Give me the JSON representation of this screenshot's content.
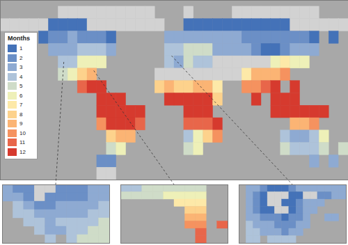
{
  "chart_data": {
    "type": "map",
    "tick_labels": false,
    "xlim": [
      -180,
      180
    ],
    "ylim": [
      -60,
      85
    ],
    "lons": [
      -175,
      -165,
      -155,
      -145,
      -135,
      -125,
      -115,
      -105,
      -95,
      -85,
      -75,
      -65,
      -55,
      -45,
      -35,
      -25,
      -15,
      -5,
      5,
      15,
      25,
      35,
      45,
      55,
      65,
      75,
      85,
      95,
      105,
      115,
      125,
      135,
      145,
      155,
      165,
      175
    ],
    "lats": [
      75,
      65,
      55,
      45,
      35,
      25,
      15,
      5,
      -5,
      -15,
      -25,
      -35,
      -45,
      -55
    ],
    "cells": [
      [
        null,
        null,
        null,
        null,
        null,
        null,
        0,
        0,
        0,
        0,
        0,
        0,
        0,
        0,
        0,
        0,
        null,
        null,
        null,
        0,
        null,
        null,
        null,
        null,
        0,
        0,
        0,
        0,
        0,
        0,
        0,
        0,
        0,
        null,
        null,
        null
      ],
      [
        0,
        0,
        0,
        0,
        0,
        1,
        1,
        1,
        1,
        0,
        0,
        0,
        0,
        0,
        0,
        0,
        0,
        null,
        null,
        1,
        1,
        1,
        1,
        1,
        1,
        1,
        1,
        1,
        1,
        1,
        0,
        0,
        0,
        0,
        0,
        0
      ],
      [
        null,
        null,
        null,
        null,
        1,
        2,
        2,
        3,
        2,
        2,
        2,
        1,
        null,
        null,
        null,
        null,
        null,
        3,
        3,
        3,
        3,
        3,
        3,
        3,
        3,
        2,
        2,
        2,
        2,
        2,
        2,
        2,
        1,
        null,
        1,
        null
      ],
      [
        null,
        null,
        null,
        null,
        null,
        3,
        3,
        3,
        4,
        4,
        4,
        3,
        null,
        null,
        null,
        null,
        null,
        4,
        4,
        5,
        5,
        5,
        3,
        3,
        3,
        3,
        2,
        1,
        1,
        2,
        3,
        3,
        3,
        null,
        null,
        null
      ],
      [
        null,
        null,
        null,
        null,
        null,
        null,
        4,
        4,
        6,
        6,
        6,
        null,
        null,
        null,
        null,
        null,
        null,
        4,
        3,
        5,
        4,
        4,
        0,
        0,
        0,
        0,
        0,
        0,
        6,
        7,
        6,
        6,
        null,
        null,
        null,
        null
      ],
      [
        null,
        null,
        null,
        null,
        null,
        null,
        5,
        6,
        8,
        9,
        null,
        null,
        null,
        null,
        null,
        null,
        0,
        0,
        0,
        0,
        0,
        0,
        0,
        0,
        0,
        7,
        9,
        9,
        9,
        10,
        null,
        null,
        null,
        null,
        null,
        null
      ],
      [
        null,
        null,
        null,
        null,
        null,
        null,
        null,
        null,
        11,
        12,
        12,
        null,
        null,
        null,
        null,
        null,
        8,
        9,
        8,
        8,
        9,
        9,
        7,
        null,
        null,
        10,
        10,
        11,
        12,
        null,
        12,
        null,
        null,
        null,
        null,
        null
      ],
      [
        null,
        null,
        null,
        null,
        null,
        null,
        null,
        null,
        null,
        null,
        12,
        12,
        12,
        null,
        null,
        null,
        null,
        12,
        12,
        12,
        12,
        12,
        8,
        null,
        null,
        null,
        12,
        null,
        12,
        12,
        12,
        null,
        null,
        null,
        null,
        null
      ],
      [
        null,
        null,
        null,
        null,
        null,
        null,
        null,
        null,
        null,
        null,
        12,
        12,
        12,
        12,
        12,
        null,
        null,
        null,
        null,
        12,
        12,
        12,
        null,
        null,
        null,
        null,
        null,
        null,
        12,
        12,
        12,
        12,
        12,
        12,
        null,
        null
      ],
      [
        null,
        null,
        null,
        null,
        null,
        null,
        null,
        null,
        null,
        null,
        10,
        12,
        12,
        12,
        11,
        null,
        null,
        null,
        null,
        11,
        11,
        11,
        12,
        null,
        null,
        null,
        null,
        null,
        null,
        null,
        9,
        9,
        10,
        null,
        null,
        null
      ],
      [
        null,
        null,
        null,
        null,
        null,
        null,
        null,
        null,
        null,
        null,
        null,
        8,
        9,
        9,
        null,
        null,
        null,
        null,
        null,
        4,
        6,
        8,
        10,
        null,
        null,
        null,
        null,
        null,
        null,
        4,
        3,
        3,
        4,
        6,
        null,
        null
      ],
      [
        null,
        null,
        null,
        null,
        null,
        null,
        null,
        null,
        null,
        null,
        null,
        5,
        6,
        null,
        null,
        null,
        null,
        null,
        null,
        5,
        6,
        null,
        null,
        null,
        null,
        null,
        null,
        null,
        null,
        5,
        4,
        4,
        4,
        5,
        null,
        5
      ],
      [
        null,
        null,
        null,
        null,
        null,
        null,
        null,
        null,
        null,
        null,
        2,
        2,
        null,
        null,
        null,
        null,
        null,
        null,
        null,
        null,
        null,
        null,
        null,
        null,
        null,
        null,
        null,
        null,
        null,
        null,
        null,
        null,
        3,
        null,
        3,
        null
      ],
      [
        null,
        null,
        null,
        null,
        null,
        null,
        null,
        null,
        null,
        null,
        0,
        0,
        null,
        null,
        null,
        null,
        null,
        null,
        null,
        null,
        null,
        null,
        null,
        null,
        null,
        null,
        null,
        null,
        null,
        null,
        null,
        null,
        null,
        null,
        null,
        null
      ]
    ],
    "colorbar": {
      "title": "Months",
      "ticks": [
        1,
        2,
        3,
        4,
        5,
        6,
        7,
        8,
        9,
        10,
        11,
        12
      ],
      "colors": [
        "#4472b8",
        "#6b8fc6",
        "#8eaad2",
        "#aec3da",
        "#cfdcc8",
        "#eef0b8",
        "#fde9a8",
        "#fdd28c",
        "#fbb474",
        "#f5925f",
        "#e8664a",
        "#d63a2e"
      ]
    },
    "insets": [
      {
        "xlim": [
          -124,
          -104
        ],
        "ylim": [
          28,
          42
        ],
        "lons": [
          -123,
          -121,
          -119,
          -117,
          -115,
          -113,
          -111,
          -109,
          -107,
          -105
        ],
        "lats": [
          41,
          39,
          37,
          35,
          33,
          31,
          29
        ],
        "cells": [
          [
            3,
            2,
            2,
            0,
            0,
            2,
            2,
            2,
            3,
            3
          ],
          [
            3,
            3,
            2,
            0,
            2,
            2,
            2,
            2,
            3,
            3
          ],
          [
            null,
            4,
            3,
            2,
            2,
            3,
            3,
            3,
            3,
            4
          ],
          [
            null,
            4,
            4,
            3,
            3,
            3,
            3,
            3,
            4,
            4
          ],
          [
            null,
            null,
            4,
            4,
            3,
            4,
            4,
            4,
            4,
            5
          ],
          [
            null,
            null,
            null,
            4,
            3,
            3,
            4,
            4,
            5,
            5
          ],
          [
            null,
            null,
            null,
            null,
            4,
            null,
            4,
            5,
            5,
            5
          ]
        ]
      },
      {
        "xlim": [
          -88,
          -78
        ],
        "ylim": [
          24,
          32
        ],
        "lons": [
          -87.5,
          -86.5,
          -85.5,
          -84.5,
          -83.5,
          -82.5,
          -81.5,
          -80.5,
          -79.5,
          -78.5
        ],
        "lats": [
          31.5,
          30.5,
          29.5,
          28.5,
          27.5,
          26.5,
          25.5,
          24.5
        ],
        "cells": [
          [
            4,
            4,
            5,
            5,
            5,
            5,
            5,
            5,
            null,
            null
          ],
          [
            5,
            5,
            5,
            5,
            6,
            6,
            6,
            6,
            null,
            null
          ],
          [
            null,
            null,
            null,
            null,
            null,
            7,
            7,
            7,
            null,
            null
          ],
          [
            null,
            null,
            null,
            null,
            null,
            null,
            8,
            8,
            null,
            null
          ],
          [
            null,
            null,
            null,
            null,
            null,
            null,
            9,
            9,
            null,
            null
          ],
          [
            null,
            null,
            null,
            null,
            null,
            null,
            10,
            10,
            null,
            11
          ],
          [
            null,
            null,
            null,
            null,
            null,
            null,
            null,
            11,
            null,
            null
          ],
          [
            null,
            null,
            null,
            null,
            null,
            null,
            null,
            11,
            null,
            null
          ]
        ]
      },
      {
        "xlim": [
          -10,
          5
        ],
        "ylim": [
          36,
          44
        ],
        "lons": [
          -9.5,
          -8.5,
          -7.5,
          -6.5,
          -5.5,
          -4.5,
          -3.5,
          -2.5,
          -1.5,
          -0.5,
          0.5,
          1.5,
          2.5,
          3.5,
          4.5
        ],
        "lats": [
          43.5,
          42.5,
          41.5,
          40.5,
          39.5,
          38.5,
          37.5,
          36.5
        ],
        "cells": [
          [
            null,
            3,
            3,
            2,
            1,
            1,
            1,
            2,
            3,
            3,
            3,
            3,
            3,
            3,
            3
          ],
          [
            null,
            3,
            2,
            1,
            0,
            0,
            0,
            1,
            1,
            0,
            0,
            2,
            2,
            3,
            3
          ],
          [
            null,
            3,
            2,
            1,
            0,
            0,
            1,
            1,
            2,
            3,
            3,
            3,
            null,
            null,
            null
          ],
          [
            null,
            3,
            2,
            1,
            1,
            0,
            0,
            1,
            2,
            3,
            3,
            null,
            null,
            null,
            null
          ],
          [
            null,
            3,
            3,
            2,
            2,
            2,
            1,
            2,
            2,
            3,
            null,
            null,
            3,
            3,
            null
          ],
          [
            null,
            4,
            3,
            3,
            3,
            2,
            2,
            2,
            3,
            3,
            null,
            null,
            null,
            null,
            null
          ],
          [
            null,
            4,
            4,
            3,
            3,
            3,
            2,
            3,
            3,
            null,
            null,
            null,
            null,
            null,
            null
          ],
          [
            null,
            4,
            4,
            null,
            4,
            4,
            4,
            4,
            null,
            null,
            null,
            null,
            null,
            null,
            null
          ]
        ]
      }
    ]
  }
}
